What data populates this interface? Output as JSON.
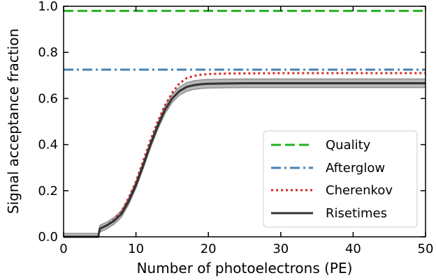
{
  "chart_data": {
    "type": "line",
    "title": "",
    "xlabel": "Number of photoelectrons (PE)",
    "ylabel": "Signal acceptance fraction",
    "xlim": [
      0,
      50
    ],
    "ylim": [
      0,
      1.0
    ],
    "xticks": [
      0,
      10,
      20,
      30,
      40,
      50
    ],
    "yticks": [
      0.0,
      0.2,
      0.4,
      0.6,
      0.8,
      1.0
    ],
    "xtick_labels": [
      "0",
      "10",
      "20",
      "30",
      "40",
      "50"
    ],
    "ytick_labels": [
      "0.0",
      "0.2",
      "0.4",
      "0.6",
      "0.8",
      "1.0"
    ],
    "grid": false,
    "legend_position": "bottom-right",
    "series": [
      {
        "name": "Quality",
        "style": "dashed",
        "color": "#22b222",
        "x": [
          0,
          50
        ],
        "y": [
          0.98,
          0.98
        ]
      },
      {
        "name": "Afterglow",
        "style": "dashdot",
        "color": "#4682b4",
        "x": [
          0,
          50
        ],
        "y": [
          0.725,
          0.725
        ]
      },
      {
        "name": "Cherenkov",
        "style": "dotted",
        "color": "#d62728",
        "x": [
          0,
          4.8,
          5,
          6,
          7,
          8,
          9,
          10,
          11,
          12,
          13,
          14,
          15,
          16,
          17,
          18,
          19,
          20,
          22,
          25,
          30,
          40,
          50
        ],
        "y": [
          0,
          0,
          0.035,
          0.05,
          0.075,
          0.11,
          0.17,
          0.24,
          0.33,
          0.42,
          0.5,
          0.57,
          0.625,
          0.665,
          0.688,
          0.698,
          0.703,
          0.706,
          0.708,
          0.709,
          0.71,
          0.71,
          0.71
        ]
      },
      {
        "name": "Risetimes",
        "style": "solid",
        "color": "#333333",
        "band_color": "#aaaaaa",
        "x": [
          0,
          4.8,
          5,
          6,
          7,
          8,
          9,
          10,
          11,
          12,
          13,
          14,
          15,
          16,
          17,
          18,
          19,
          20,
          22,
          25,
          30,
          40,
          50
        ],
        "y": [
          0,
          0,
          0.035,
          0.05,
          0.07,
          0.1,
          0.155,
          0.225,
          0.31,
          0.4,
          0.48,
          0.55,
          0.6,
          0.632,
          0.65,
          0.658,
          0.662,
          0.664,
          0.665,
          0.666,
          0.666,
          0.666,
          0.666
        ],
        "y_band": [
          0.015,
          0.015,
          0.015,
          0.015,
          0.015,
          0.015,
          0.015,
          0.015,
          0.015,
          0.015,
          0.015,
          0.017,
          0.018,
          0.018,
          0.019,
          0.019,
          0.019,
          0.019,
          0.019,
          0.019,
          0.019,
          0.019,
          0.019
        ]
      }
    ]
  }
}
